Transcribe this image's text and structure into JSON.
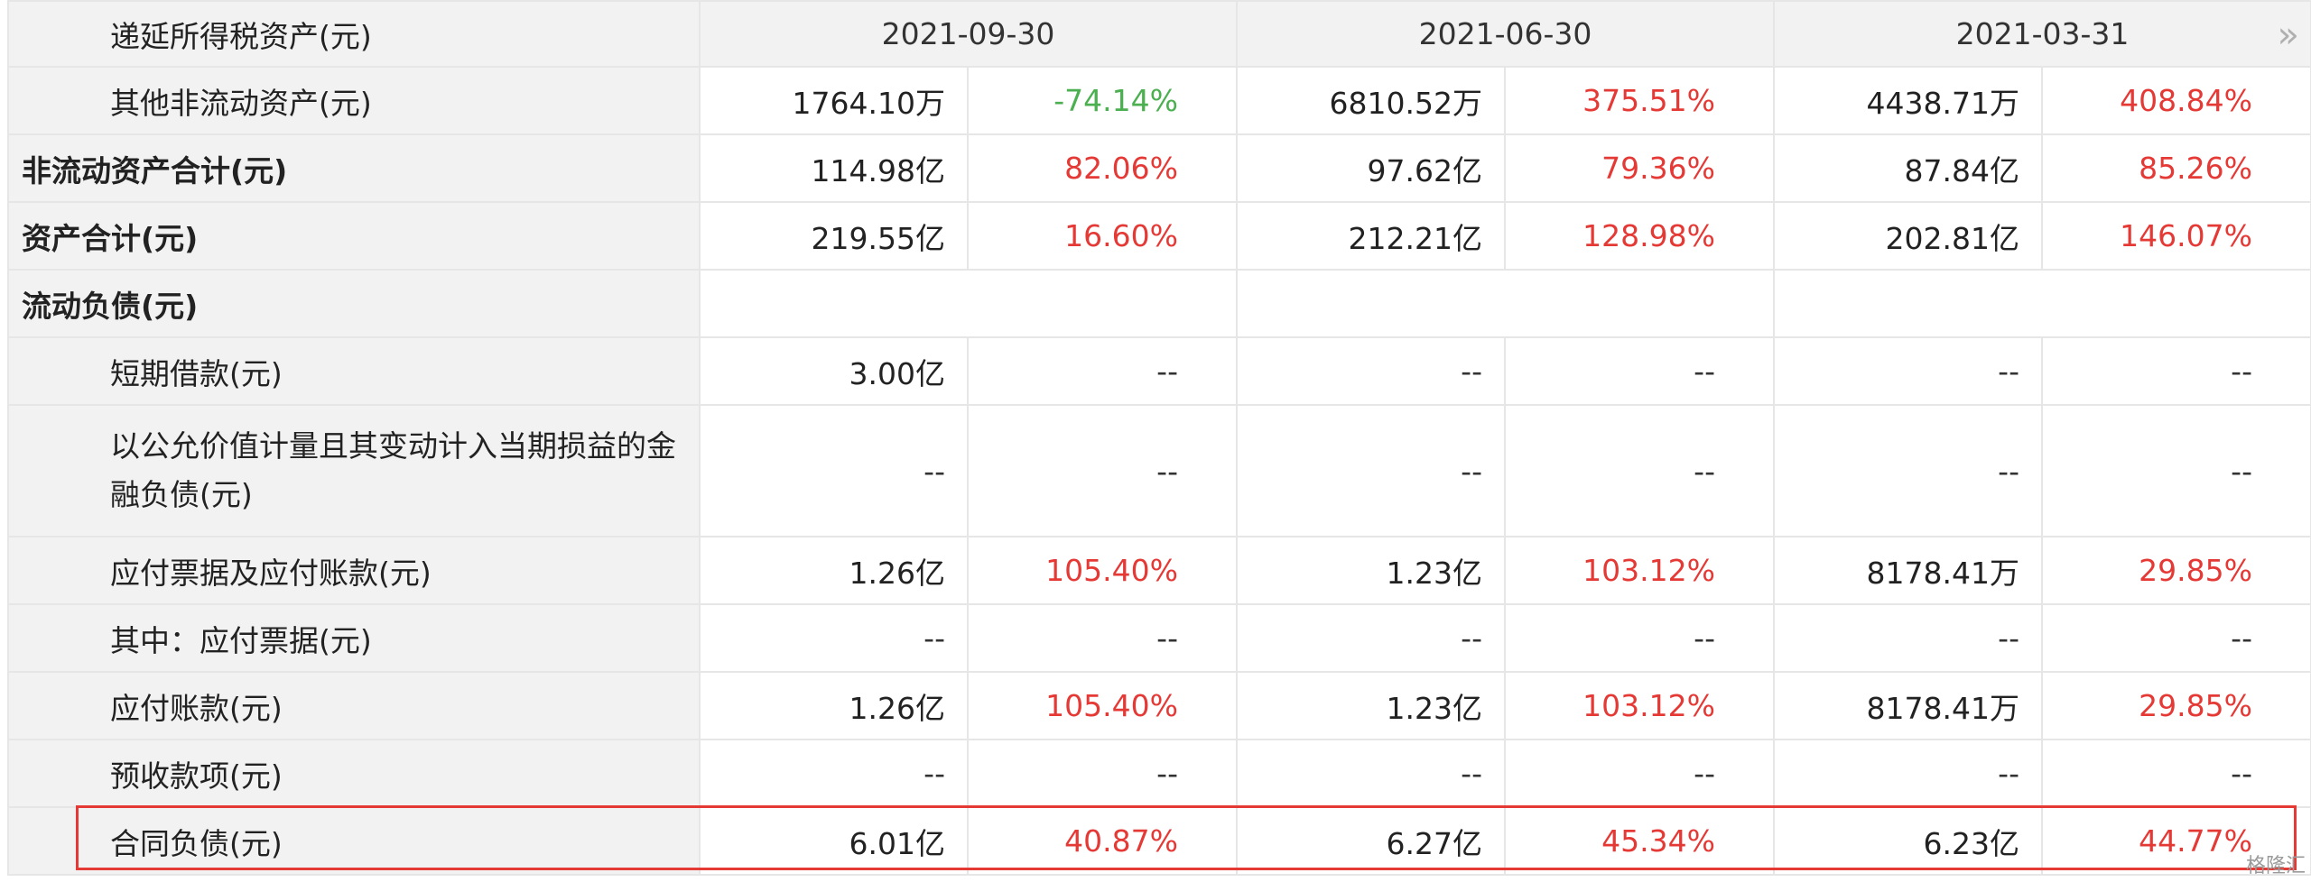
{
  "header": {
    "first_label": "递延所得税资产(元)",
    "dates": [
      "2021-09-30",
      "2021-06-30",
      "2021-03-31"
    ],
    "next_glyph": "»"
  },
  "rows": [
    {
      "label": "其他非流动资产(元)",
      "indent": true,
      "bold": false,
      "cells": [
        {
          "value": "1764.10万",
          "pct": "-74.14%",
          "pct_color": "green"
        },
        {
          "value": "6810.52万",
          "pct": "375.51%",
          "pct_color": "red"
        },
        {
          "value": "4438.71万",
          "pct": "408.84%",
          "pct_color": "red"
        }
      ]
    },
    {
      "label": "非流动资产合计(元)",
      "indent": false,
      "bold": true,
      "cells": [
        {
          "value": "114.98亿",
          "pct": "82.06%",
          "pct_color": "red"
        },
        {
          "value": "97.62亿",
          "pct": "79.36%",
          "pct_color": "red"
        },
        {
          "value": "87.84亿",
          "pct": "85.26%",
          "pct_color": "red"
        }
      ]
    },
    {
      "label": "资产合计(元)",
      "indent": false,
      "bold": true,
      "cells": [
        {
          "value": "219.55亿",
          "pct": "16.60%",
          "pct_color": "red"
        },
        {
          "value": "212.21亿",
          "pct": "128.98%",
          "pct_color": "red"
        },
        {
          "value": "202.81亿",
          "pct": "146.07%",
          "pct_color": "red"
        }
      ]
    },
    {
      "label": "流动负债(元)",
      "indent": false,
      "bold": true,
      "section": true,
      "cells": [
        {
          "value": "",
          "pct": "",
          "pct_color": "none"
        },
        {
          "value": "",
          "pct": "",
          "pct_color": "none"
        },
        {
          "value": "",
          "pct": "",
          "pct_color": "none"
        }
      ]
    },
    {
      "label": "短期借款(元)",
      "indent": true,
      "bold": false,
      "cells": [
        {
          "value": "3.00亿",
          "pct": "--",
          "pct_color": "dash"
        },
        {
          "value": "--",
          "pct": "--",
          "pct_color": "dash"
        },
        {
          "value": "--",
          "pct": "--",
          "pct_color": "dash"
        }
      ]
    },
    {
      "label": "以公允价值计量且其变动计入当期损益的金融负债(元)",
      "indent": true,
      "bold": false,
      "tall": true,
      "cells": [
        {
          "value": "--",
          "pct": "--",
          "pct_color": "dash"
        },
        {
          "value": "--",
          "pct": "--",
          "pct_color": "dash"
        },
        {
          "value": "--",
          "pct": "--",
          "pct_color": "dash"
        }
      ]
    },
    {
      "label": "应付票据及应付账款(元)",
      "indent": true,
      "bold": false,
      "cells": [
        {
          "value": "1.26亿",
          "pct": "105.40%",
          "pct_color": "red"
        },
        {
          "value": "1.23亿",
          "pct": "103.12%",
          "pct_color": "red"
        },
        {
          "value": "8178.41万",
          "pct": "29.85%",
          "pct_color": "red"
        }
      ]
    },
    {
      "label": "其中：应付票据(元)",
      "indent": true,
      "bold": false,
      "cells": [
        {
          "value": "--",
          "pct": "--",
          "pct_color": "dash"
        },
        {
          "value": "--",
          "pct": "--",
          "pct_color": "dash"
        },
        {
          "value": "--",
          "pct": "--",
          "pct_color": "dash"
        }
      ]
    },
    {
      "label": "应付账款(元)",
      "indent": true,
      "bold": false,
      "cells": [
        {
          "value": "1.26亿",
          "pct": "105.40%",
          "pct_color": "red"
        },
        {
          "value": "1.23亿",
          "pct": "103.12%",
          "pct_color": "red"
        },
        {
          "value": "8178.41万",
          "pct": "29.85%",
          "pct_color": "red"
        }
      ]
    },
    {
      "label": "预收款项(元)",
      "indent": true,
      "bold": false,
      "cells": [
        {
          "value": "--",
          "pct": "--",
          "pct_color": "dash"
        },
        {
          "value": "--",
          "pct": "--",
          "pct_color": "dash"
        },
        {
          "value": "--",
          "pct": "--",
          "pct_color": "dash"
        }
      ]
    },
    {
      "label": "合同负债(元)",
      "indent": true,
      "bold": false,
      "highlighted": true,
      "cells": [
        {
          "value": "6.01亿",
          "pct": "40.87%",
          "pct_color": "red"
        },
        {
          "value": "6.27亿",
          "pct": "45.34%",
          "pct_color": "red"
        },
        {
          "value": "6.23亿",
          "pct": "44.77%",
          "pct_color": "red"
        }
      ]
    }
  ],
  "colors": {
    "positive": "#e53935",
    "negative": "#4caf50",
    "highlight_border": "#e53935",
    "label_bg": "#f2f2f2"
  },
  "watermark": "格隆汇"
}
